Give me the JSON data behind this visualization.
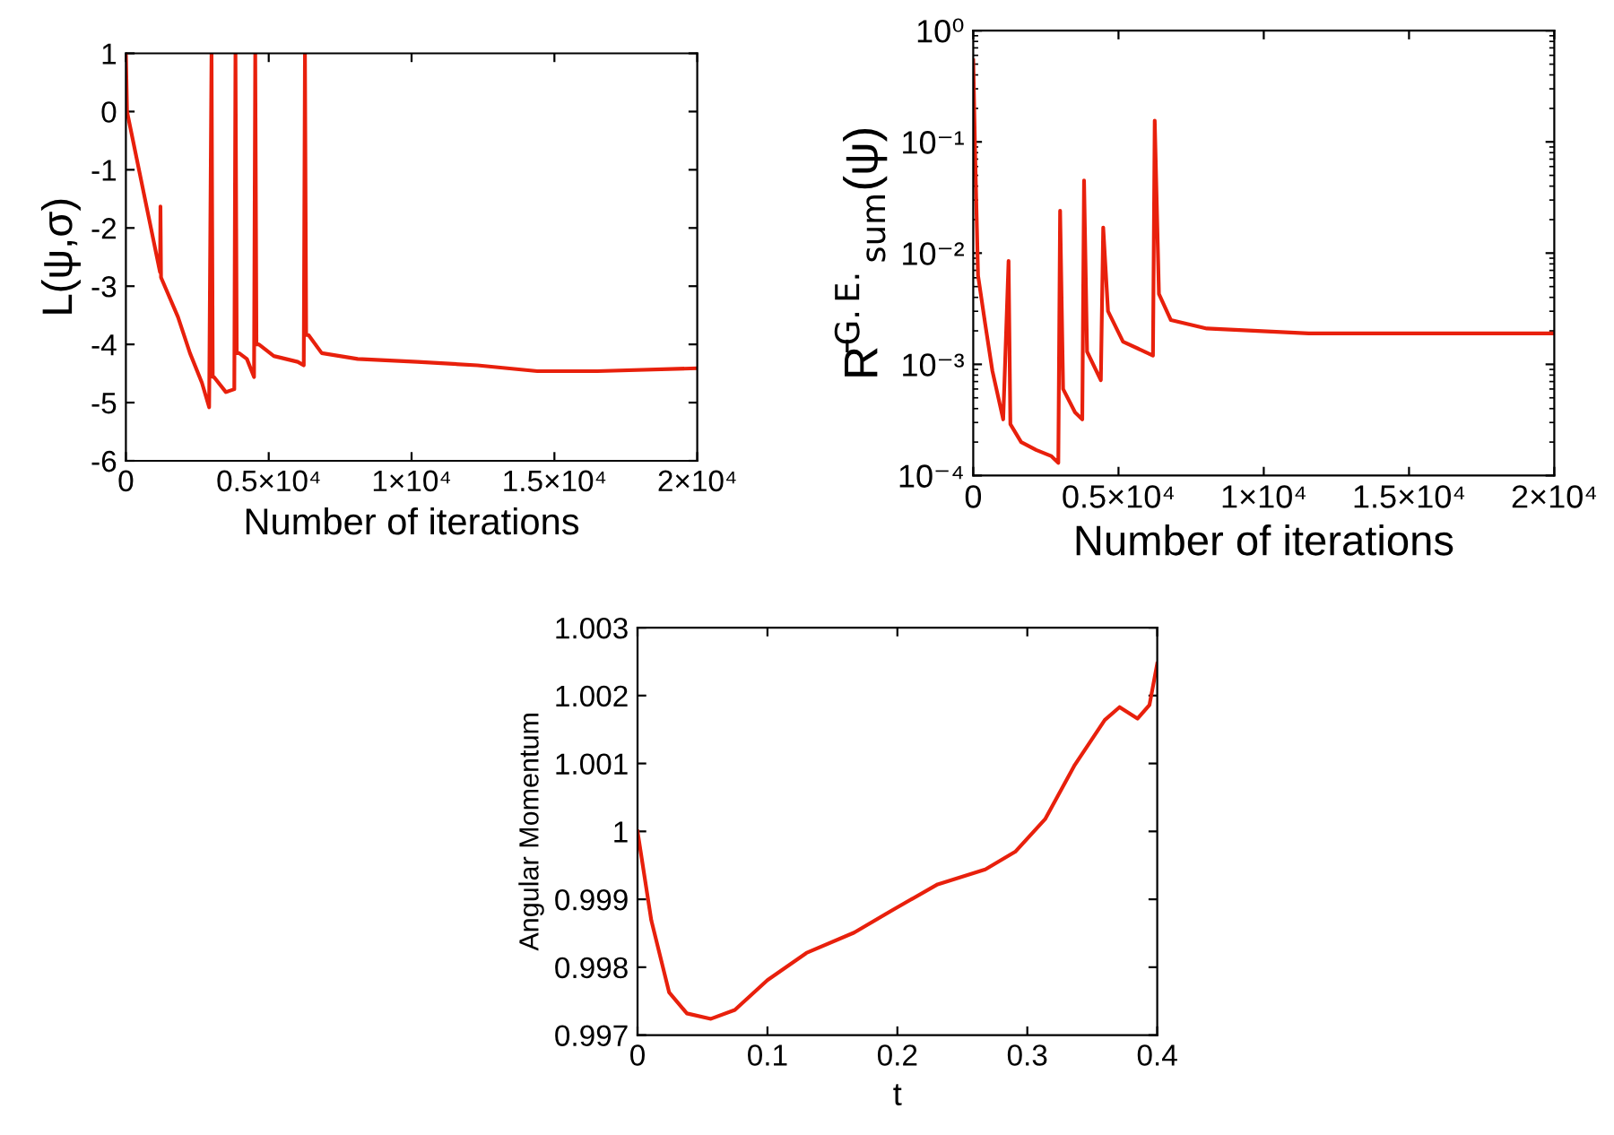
{
  "chart_data": [
    {
      "type": "line",
      "xlabel": "Number of iterations",
      "ylabel": "L(ψ,σ)",
      "xlim": [
        0,
        20000
      ],
      "ylim": [
        -6,
        1
      ],
      "xticks": [
        0,
        {
          "value": 5000,
          "label": "0.5×10⁴"
        },
        {
          "value": 10000,
          "label": "1×10⁴"
        },
        {
          "value": 15000,
          "label": "1.5×10⁴"
        },
        {
          "value": 20000,
          "label": "2×10⁴"
        }
      ],
      "yticks": [
        -6,
        -5,
        -4,
        -3,
        -2,
        -1,
        0,
        1
      ],
      "grid": false,
      "legend": false,
      "series": [
        {
          "color": "#e8200c",
          "x": [
            0,
            40,
            1195,
            1210,
            1230,
            1824,
            2243,
            2662,
            2914,
            2998,
            3040,
            3082,
            3501,
            3795,
            3836,
            3880,
            3962,
            4235,
            4486,
            4528,
            4570,
            4654,
            5178,
            6017,
            6226,
            6268,
            6310,
            6394,
            6855,
            8113,
            10210,
            12306,
            14403,
            16500,
            20000
          ],
          "values": [
            1,
            0,
            -2.76,
            -1.63,
            -2.85,
            -3.53,
            -4.15,
            -4.66,
            -5.08,
            1,
            -4.56,
            -4.56,
            -4.82,
            -4.77,
            1,
            -4.15,
            -4.15,
            -4.25,
            -4.56,
            1,
            -4.0,
            -4.0,
            -4.2,
            -4.3,
            -4.36,
            1,
            -3.84,
            -3.84,
            -4.15,
            -4.25,
            -4.3,
            -4.36,
            -4.46,
            -4.46,
            -4.41
          ]
        }
      ]
    },
    {
      "type": "line",
      "xlabel": "Number of iterations",
      "ylabel": "R̄$^{G.E.}$$_{sum}$(ψ)",
      "log": "y",
      "xlim": [
        0,
        20000
      ],
      "ylim": [
        0.0001,
        1
      ],
      "xticks": [
        0,
        {
          "value": 5000,
          "label": "0.5×10⁴"
        },
        {
          "value": 10000,
          "label": "1×10⁴"
        },
        {
          "value": 15000,
          "label": "1.5×10⁴"
        },
        {
          "value": 20000,
          "label": "2×10⁴"
        }
      ],
      "yticks": [
        {
          "value": 0.0001,
          "label": "10⁻⁴"
        },
        {
          "value": 0.001,
          "label": "10⁻³"
        },
        {
          "value": 0.01,
          "label": "10⁻²"
        },
        {
          "value": 0.1,
          "label": "10⁻¹"
        },
        {
          "value": 1,
          "label": "10⁰"
        }
      ],
      "grid": false,
      "legend": false,
      "series": [
        {
          "color": "#e8200c",
          "x": [
            0,
            62,
            165,
            412,
            660,
            1031,
            1216,
            1278,
            1649,
            2165,
            2680,
            2928,
            2990,
            3093,
            3505,
            3753,
            3814,
            3918,
            4392,
            4474,
            4639,
            5155,
            6186,
            6247,
            6392,
            6804,
            8041,
            11546,
            20000
          ],
          "values": [
            0.54,
            0.085,
            0.0063,
            0.0023,
            0.00087,
            0.00032,
            0.0085,
            0.00029,
            0.0002,
            0.00017,
            0.00015,
            0.00013,
            0.024,
            0.0006,
            0.00037,
            0.00032,
            0.045,
            0.0013,
            0.00072,
            0.017,
            0.003,
            0.0016,
            0.0012,
            0.155,
            0.0043,
            0.0025,
            0.0021,
            0.0019,
            0.0019
          ]
        }
      ]
    },
    {
      "type": "line",
      "xlabel": "t",
      "ylabel": "Angular Momentum",
      "xlim": [
        0,
        0.4
      ],
      "ylim": [
        0.997,
        1.003
      ],
      "xticks": [
        0,
        0.1,
        0.2,
        0.3,
        0.4
      ],
      "yticks": [
        0.997,
        0.998,
        0.999,
        1,
        1.001,
        1.002,
        1.003
      ],
      "grid": false,
      "legend": false,
      "series": [
        {
          "color": "#e8200c",
          "x": [
            0,
            0.0106,
            0.0243,
            0.038,
            0.0565,
            0.0749,
            0.1,
            0.13,
            0.1667,
            0.1988,
            0.231,
            0.2677,
            0.2907,
            0.3137,
            0.3366,
            0.3596,
            0.371,
            0.3848,
            0.394,
            0.4
          ],
          "values": [
            1.0,
            0.99869,
            0.99763,
            0.99732,
            0.99724,
            0.99737,
            0.99781,
            0.99821,
            0.99851,
            0.99887,
            0.99922,
            0.99944,
            0.9997,
            1.00018,
            1.00098,
            1.00164,
            1.00183,
            1.00166,
            1.00186,
            1.00247
          ]
        }
      ]
    }
  ]
}
